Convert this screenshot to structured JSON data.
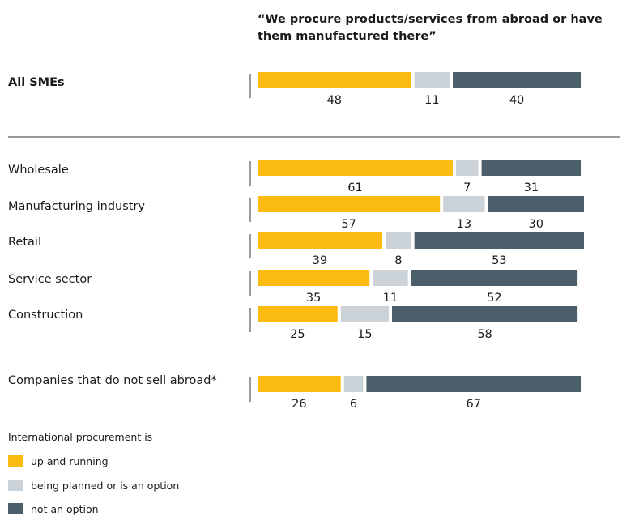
{
  "chart_data": {
    "type": "bar",
    "stacked": true,
    "orientation": "horizontal",
    "title": "“We procure products/services from abroad or have them manufactured there”",
    "categories": [
      "All SMEs",
      "Wholesale",
      "Manufacturing industry",
      "Retail",
      "Service sector",
      "Construction",
      "Companies that do not sell abroad*"
    ],
    "series": [
      {
        "name": "up and running",
        "color": "#fbbb10",
        "values": [
          48,
          61,
          57,
          39,
          35,
          25,
          26
        ]
      },
      {
        "name": "being planned or is an option",
        "color": "#ccd3d8",
        "values": [
          11,
          7,
          13,
          8,
          11,
          15,
          6
        ]
      },
      {
        "name": "not an option",
        "color": "#4b5e69",
        "values": [
          40,
          31,
          30,
          53,
          52,
          58,
          67
        ]
      }
    ],
    "legend_title": "International procurement is",
    "legend_position": "bottom-left"
  }
}
